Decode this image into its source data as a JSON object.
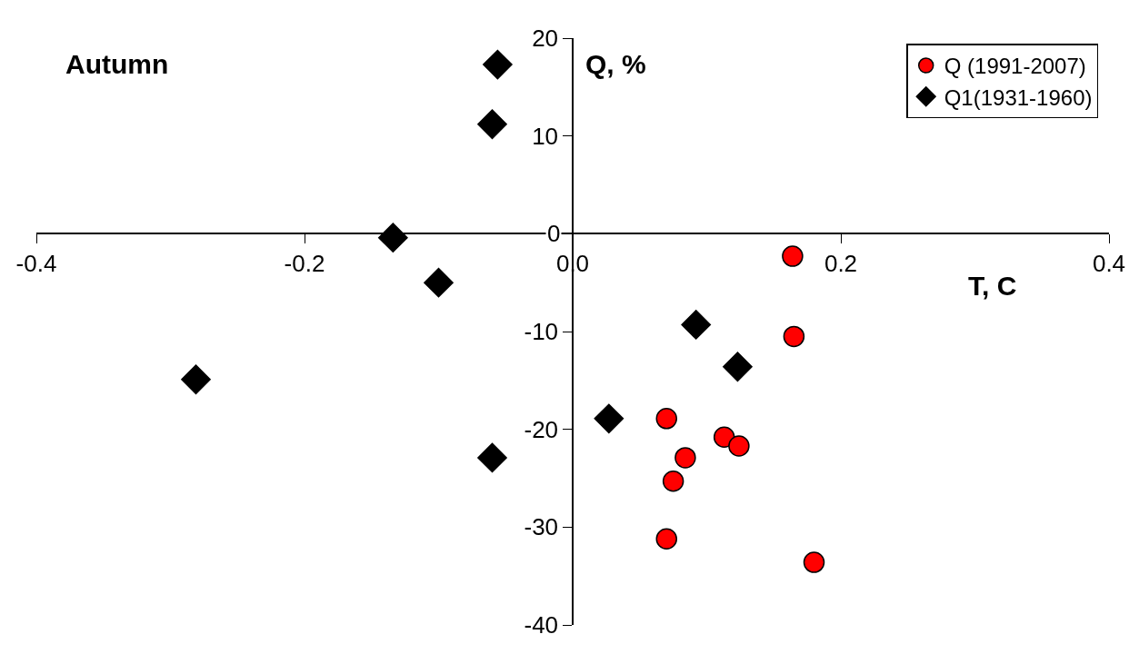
{
  "chart_data": {
    "type": "scatter",
    "title": "Autumn",
    "xlabel": "T, C",
    "ylabel": "Q, %",
    "xlim": [
      -0.4,
      0.4
    ],
    "xticks": [
      -0.4,
      -0.2,
      {
        "value": 0,
        "label": "0.0"
      },
      0.2,
      0.4
    ],
    "ylim": [
      -40,
      20
    ],
    "yticks": [
      -40,
      -30,
      -20,
      -10,
      0,
      10,
      20
    ],
    "grid": false,
    "legend": "top right",
    "series": [
      {
        "name": "Q (1991-2007)",
        "color": "#ff0000",
        "marker": "circle",
        "x": [
          0.164,
          0.165,
          0.07,
          0.113,
          0.124,
          0.084,
          0.075,
          0.07,
          0.18
        ],
        "values": [
          -2.3,
          -10.5,
          -18.9,
          -20.8,
          -21.7,
          -22.9,
          -25.3,
          -31.2,
          -33.6
        ]
      },
      {
        "name": "Q1(1931-1960)",
        "color": "#000000",
        "marker": "diamond",
        "x": [
          -0.056,
          -0.06,
          -0.134,
          -0.1,
          -0.281,
          -0.06,
          0.027,
          0.092,
          0.123
        ],
        "values": [
          17.3,
          11.2,
          -0.4,
          -5.0,
          -14.9,
          -22.9,
          -18.9,
          -9.3,
          -13.6
        ]
      }
    ]
  }
}
